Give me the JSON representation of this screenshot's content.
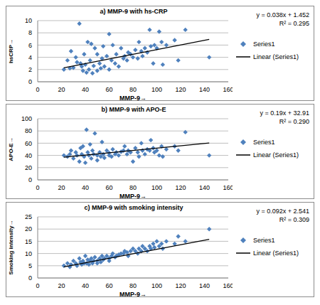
{
  "chart_data": [
    {
      "type": "scatter",
      "title": "a) MMP-9 with hs-CRP",
      "x_label": "MMP-9→",
      "y_label": "hsCRP→",
      "annotations": [
        "y = 0.038x + 1.452",
        "R² = 0.295"
      ],
      "x": [
        22,
        25,
        27,
        28,
        30,
        32,
        33,
        35,
        36,
        37,
        38,
        39,
        40,
        41,
        42,
        43,
        44,
        45,
        46,
        47,
        48,
        50,
        50,
        52,
        53,
        54,
        55,
        56,
        58,
        60,
        60,
        62,
        63,
        65,
        66,
        68,
        70,
        72,
        73,
        75,
        76,
        78,
        80,
        82,
        84,
        85,
        87,
        88,
        90,
        92,
        94,
        95,
        97,
        98,
        100,
        102,
        104,
        105,
        108,
        115,
        118,
        124,
        144
      ],
      "series": [
        {
          "name": "Series1",
          "color": "#4f81bd",
          "marker": "diamond",
          "values": [
            2.0,
            3.5,
            2.2,
            5.0,
            2.3,
            4.0,
            3.2,
            9.5,
            3.0,
            2.5,
            1.8,
            4.5,
            2.8,
            1.5,
            6.5,
            2.0,
            3.5,
            6.2,
            1.4,
            2.6,
            5.5,
            4.5,
            1.8,
            3.0,
            2.2,
            3.8,
            5.8,
            2.5,
            4.2,
            7.8,
            2.0,
            3.5,
            6.0,
            3.0,
            4.5,
            2.5,
            5.5,
            3.8,
            4.2,
            3.5,
            4.8,
            4.5,
            4.0,
            5.2,
            3.8,
            6.5,
            5.0,
            4.2,
            5.5,
            4.8,
            8.5,
            5.8,
            3.0,
            6.0,
            5.5,
            8.2,
            6.5,
            2.8,
            6.0,
            6.8,
            3.5,
            8.5,
            4.0
          ]
        },
        {
          "name": "Linear (Series1)",
          "type": "line",
          "color": "#000000",
          "x": [
            22,
            144
          ],
          "values": [
            2.288,
            6.924
          ]
        }
      ],
      "xlim": [
        0,
        160
      ],
      "xticks": [
        0,
        20,
        40,
        60,
        80,
        100,
        120,
        140,
        160
      ],
      "ylim": [
        0,
        10
      ],
      "yticks": [
        0,
        2,
        4,
        6,
        8,
        10
      ],
      "grid": true,
      "legend": "right"
    },
    {
      "type": "scatter",
      "title": "b) MMP-9 with APO-E",
      "x_label": "MMP-9→",
      "y_label": "APO-E→",
      "annotations": [
        "y = 0.19x + 32.91",
        "R² = 0.290"
      ],
      "x": [
        22,
        25,
        27,
        28,
        30,
        32,
        33,
        35,
        36,
        37,
        38,
        39,
        40,
        41,
        42,
        43,
        44,
        45,
        46,
        47,
        48,
        50,
        50,
        52,
        53,
        54,
        55,
        56,
        58,
        60,
        60,
        62,
        63,
        65,
        66,
        68,
        70,
        72,
        73,
        75,
        76,
        78,
        80,
        82,
        84,
        85,
        87,
        88,
        90,
        92,
        94,
        95,
        97,
        98,
        100,
        102,
        104,
        105,
        108,
        115,
        118,
        124,
        144
      ],
      "series": [
        {
          "name": "Series1",
          "color": "#4f81bd",
          "marker": "diamond",
          "values": [
            40,
            38,
            42,
            48,
            35,
            45,
            40,
            30,
            52,
            42,
            55,
            38,
            28,
            82,
            45,
            40,
            58,
            35,
            48,
            42,
            76,
            40,
            32,
            45,
            38,
            62,
            42,
            36,
            48,
            40,
            44,
            38,
            50,
            42,
            45,
            40,
            46,
            48,
            55,
            42,
            48,
            45,
            30,
            52,
            45,
            38,
            60,
            48,
            42,
            50,
            48,
            65,
            52,
            45,
            48,
            40,
            55,
            38,
            50,
            55,
            48,
            78,
            40
          ]
        },
        {
          "name": "Linear (Series1)",
          "type": "line",
          "color": "#000000",
          "x": [
            22,
            144
          ],
          "values": [
            37.09,
            60.27
          ]
        }
      ],
      "xlim": [
        0,
        160
      ],
      "xticks": [
        0,
        20,
        40,
        60,
        80,
        100,
        120,
        140,
        160
      ],
      "ylim": [
        0,
        100
      ],
      "yticks": [
        0,
        20,
        40,
        60,
        80,
        100
      ],
      "grid": true,
      "legend": "right"
    },
    {
      "type": "scatter",
      "title": "c) MMP-9 with smoking intensity",
      "x_label": "MMP-9→",
      "y_label": "Smoking intensity→",
      "annotations": [
        "y = 0.092x + 2.541",
        "R² = 0.309"
      ],
      "x": [
        22,
        25,
        27,
        28,
        30,
        32,
        33,
        35,
        36,
        37,
        38,
        39,
        40,
        41,
        42,
        43,
        44,
        45,
        46,
        47,
        48,
        50,
        50,
        52,
        53,
        54,
        55,
        56,
        58,
        60,
        60,
        62,
        63,
        65,
        66,
        68,
        70,
        72,
        73,
        75,
        76,
        78,
        80,
        82,
        84,
        85,
        87,
        88,
        90,
        92,
        94,
        95,
        97,
        98,
        100,
        102,
        104,
        105,
        108,
        115,
        118,
        124,
        144
      ],
      "series": [
        {
          "name": "Series1",
          "color": "#4f81bd",
          "marker": "diamond",
          "values": [
            5,
            6,
            4.5,
            5.5,
            7,
            6,
            5,
            8,
            6.5,
            5.5,
            7,
            6,
            9,
            6,
            7.5,
            5.5,
            7,
            8,
            6,
            7,
            8.5,
            7,
            6,
            8,
            6.5,
            9,
            7.5,
            8,
            9,
            8,
            7,
            9,
            10,
            8.5,
            9,
            9.5,
            10,
            10,
            11,
            10.5,
            9,
            11,
            12,
            11,
            10,
            12,
            11,
            13,
            12,
            11,
            13,
            12,
            14,
            12.5,
            15,
            13,
            14,
            12,
            15,
            14,
            17,
            15,
            20
          ]
        },
        {
          "name": "Linear (Series1)",
          "type": "line",
          "color": "#000000",
          "x": [
            22,
            144
          ],
          "values": [
            4.565,
            15.789
          ]
        }
      ],
      "xlim": [
        0,
        160
      ],
      "xticks": [
        0,
        20,
        40,
        60,
        80,
        100,
        120,
        140,
        160
      ],
      "ylim": [
        0,
        25
      ],
      "yticks": [
        0,
        5,
        10,
        15,
        20,
        25
      ],
      "grid": true,
      "legend": "right"
    }
  ]
}
